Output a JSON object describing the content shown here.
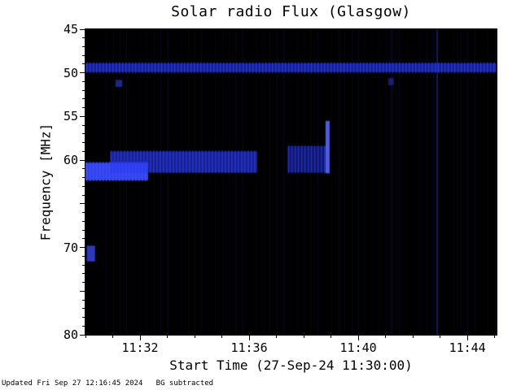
{
  "page": {
    "footer": "Updated Fri Sep 27 12:16:45 2024   BG subtracted"
  },
  "chart_data": {
    "type": "heatmap",
    "title": "Solar radio Flux (Glasgow)",
    "xlabel": "Start Time (27-Sep-24 11:30:00)",
    "ylabel": "Frequency [MHz]",
    "x_unit": "minutes after 11:30:00",
    "xlim": [
      0,
      15.07
    ],
    "ylim": [
      45,
      80
    ],
    "y_axis_inverted": true,
    "background": "#000000",
    "signal_color": "#2a3cf0",
    "x_major_ticks": [
      {
        "t": 2,
        "label": "11:32"
      },
      {
        "t": 6,
        "label": "11:36"
      },
      {
        "t": 10,
        "label": "11:40"
      },
      {
        "t": 14,
        "label": "11:44"
      }
    ],
    "x_minor_step": 1,
    "y_major_ticks": [
      {
        "f": 45,
        "label": "45"
      },
      {
        "f": 50,
        "label": "50"
      },
      {
        "f": 55,
        "label": "55"
      },
      {
        "f": 60,
        "label": "60"
      },
      {
        "f": 70,
        "label": "70"
      },
      {
        "f": 80,
        "label": "80"
      }
    ],
    "y_minor_step": 1,
    "interference_stripes": {
      "interval_min": 0.25,
      "color": "#3040e0",
      "base_alpha": 0.12
    },
    "bright_stripes": [
      {
        "t": 12.85,
        "alpha": 0.38,
        "width": 2
      },
      {
        "t": 11.2,
        "alpha": 0.2,
        "width": 1
      },
      {
        "t": 9.3,
        "alpha": 0.16,
        "width": 1
      }
    ],
    "features": [
      {
        "name": "rfi-band-50mhz",
        "t0": 0,
        "t1": 15.07,
        "f0": 48.9,
        "f1": 49.9,
        "color": "#2a3cf0",
        "alpha": 0.55,
        "comb": true
      },
      {
        "name": "burst-core",
        "t0": 0,
        "t1": 2.3,
        "f0": 60.3,
        "f1": 62.3,
        "color": "#3a4cff",
        "alpha": 0.9,
        "comb": true
      },
      {
        "name": "burst-main",
        "t0": 0.9,
        "t1": 6.3,
        "f0": 59.0,
        "f1": 61.4,
        "color": "#2a3cf0",
        "alpha": 0.55,
        "comb": true
      },
      {
        "name": "burst-late",
        "t0": 7.4,
        "t1": 8.85,
        "f0": 58.4,
        "f1": 61.4,
        "color": "#2a3cf0",
        "alpha": 0.4,
        "comb": true
      },
      {
        "name": "burst-end-edge",
        "t0": 8.8,
        "t1": 8.95,
        "f0": 55.5,
        "f1": 61.5,
        "color": "#5a6cff",
        "alpha": 0.85,
        "comb": false
      },
      {
        "name": "blip-70mhz",
        "t0": 0.05,
        "t1": 0.35,
        "f0": 69.8,
        "f1": 71.6,
        "color": "#3a4cff",
        "alpha": 0.75,
        "comb": false
      },
      {
        "name": "dot-51mhz-a",
        "t0": 1.1,
        "t1": 1.35,
        "f0": 50.8,
        "f1": 51.6,
        "color": "#3a4cff",
        "alpha": 0.5,
        "comb": false
      },
      {
        "name": "dot-51mhz-b",
        "t0": 11.1,
        "t1": 11.3,
        "f0": 50.6,
        "f1": 51.4,
        "color": "#3a4cff",
        "alpha": 0.4,
        "comb": false
      }
    ]
  }
}
